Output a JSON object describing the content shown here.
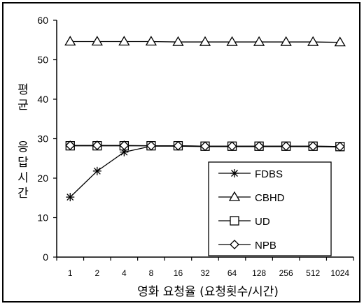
{
  "chart_data": {
    "type": "line",
    "title": "",
    "xlabel": "영화 요청율 (요청횟수/시간)",
    "ylabel": "평균 응답시간",
    "x": [
      "1",
      "2",
      "4",
      "8",
      "16",
      "32",
      "64",
      "128",
      "256",
      "512",
      "1024"
    ],
    "ylim": [
      0,
      60
    ],
    "yticks": [
      0,
      10,
      20,
      30,
      40,
      50,
      60
    ],
    "grid": false,
    "legend_position": "bottom-right",
    "series": [
      {
        "name": "FDBS",
        "marker": "asterisk",
        "values": [
          15.2,
          21.8,
          26.6,
          28.1,
          28.1,
          28.0,
          28.0,
          28.0,
          28.0,
          28.0,
          27.9
        ]
      },
      {
        "name": "CBHD",
        "marker": "triangle",
        "values": [
          54.6,
          54.6,
          54.6,
          54.6,
          54.5,
          54.5,
          54.5,
          54.5,
          54.5,
          54.5,
          54.4
        ]
      },
      {
        "name": "UD",
        "marker": "square",
        "values": [
          28.2,
          28.2,
          28.2,
          28.2,
          28.2,
          28.1,
          28.1,
          28.1,
          28.1,
          28.1,
          28.0
        ]
      },
      {
        "name": "NPB",
        "marker": "diamond",
        "values": [
          28.3,
          28.3,
          28.3,
          28.2,
          28.2,
          28.1,
          28.1,
          28.1,
          28.1,
          28.1,
          28.0
        ]
      }
    ]
  }
}
